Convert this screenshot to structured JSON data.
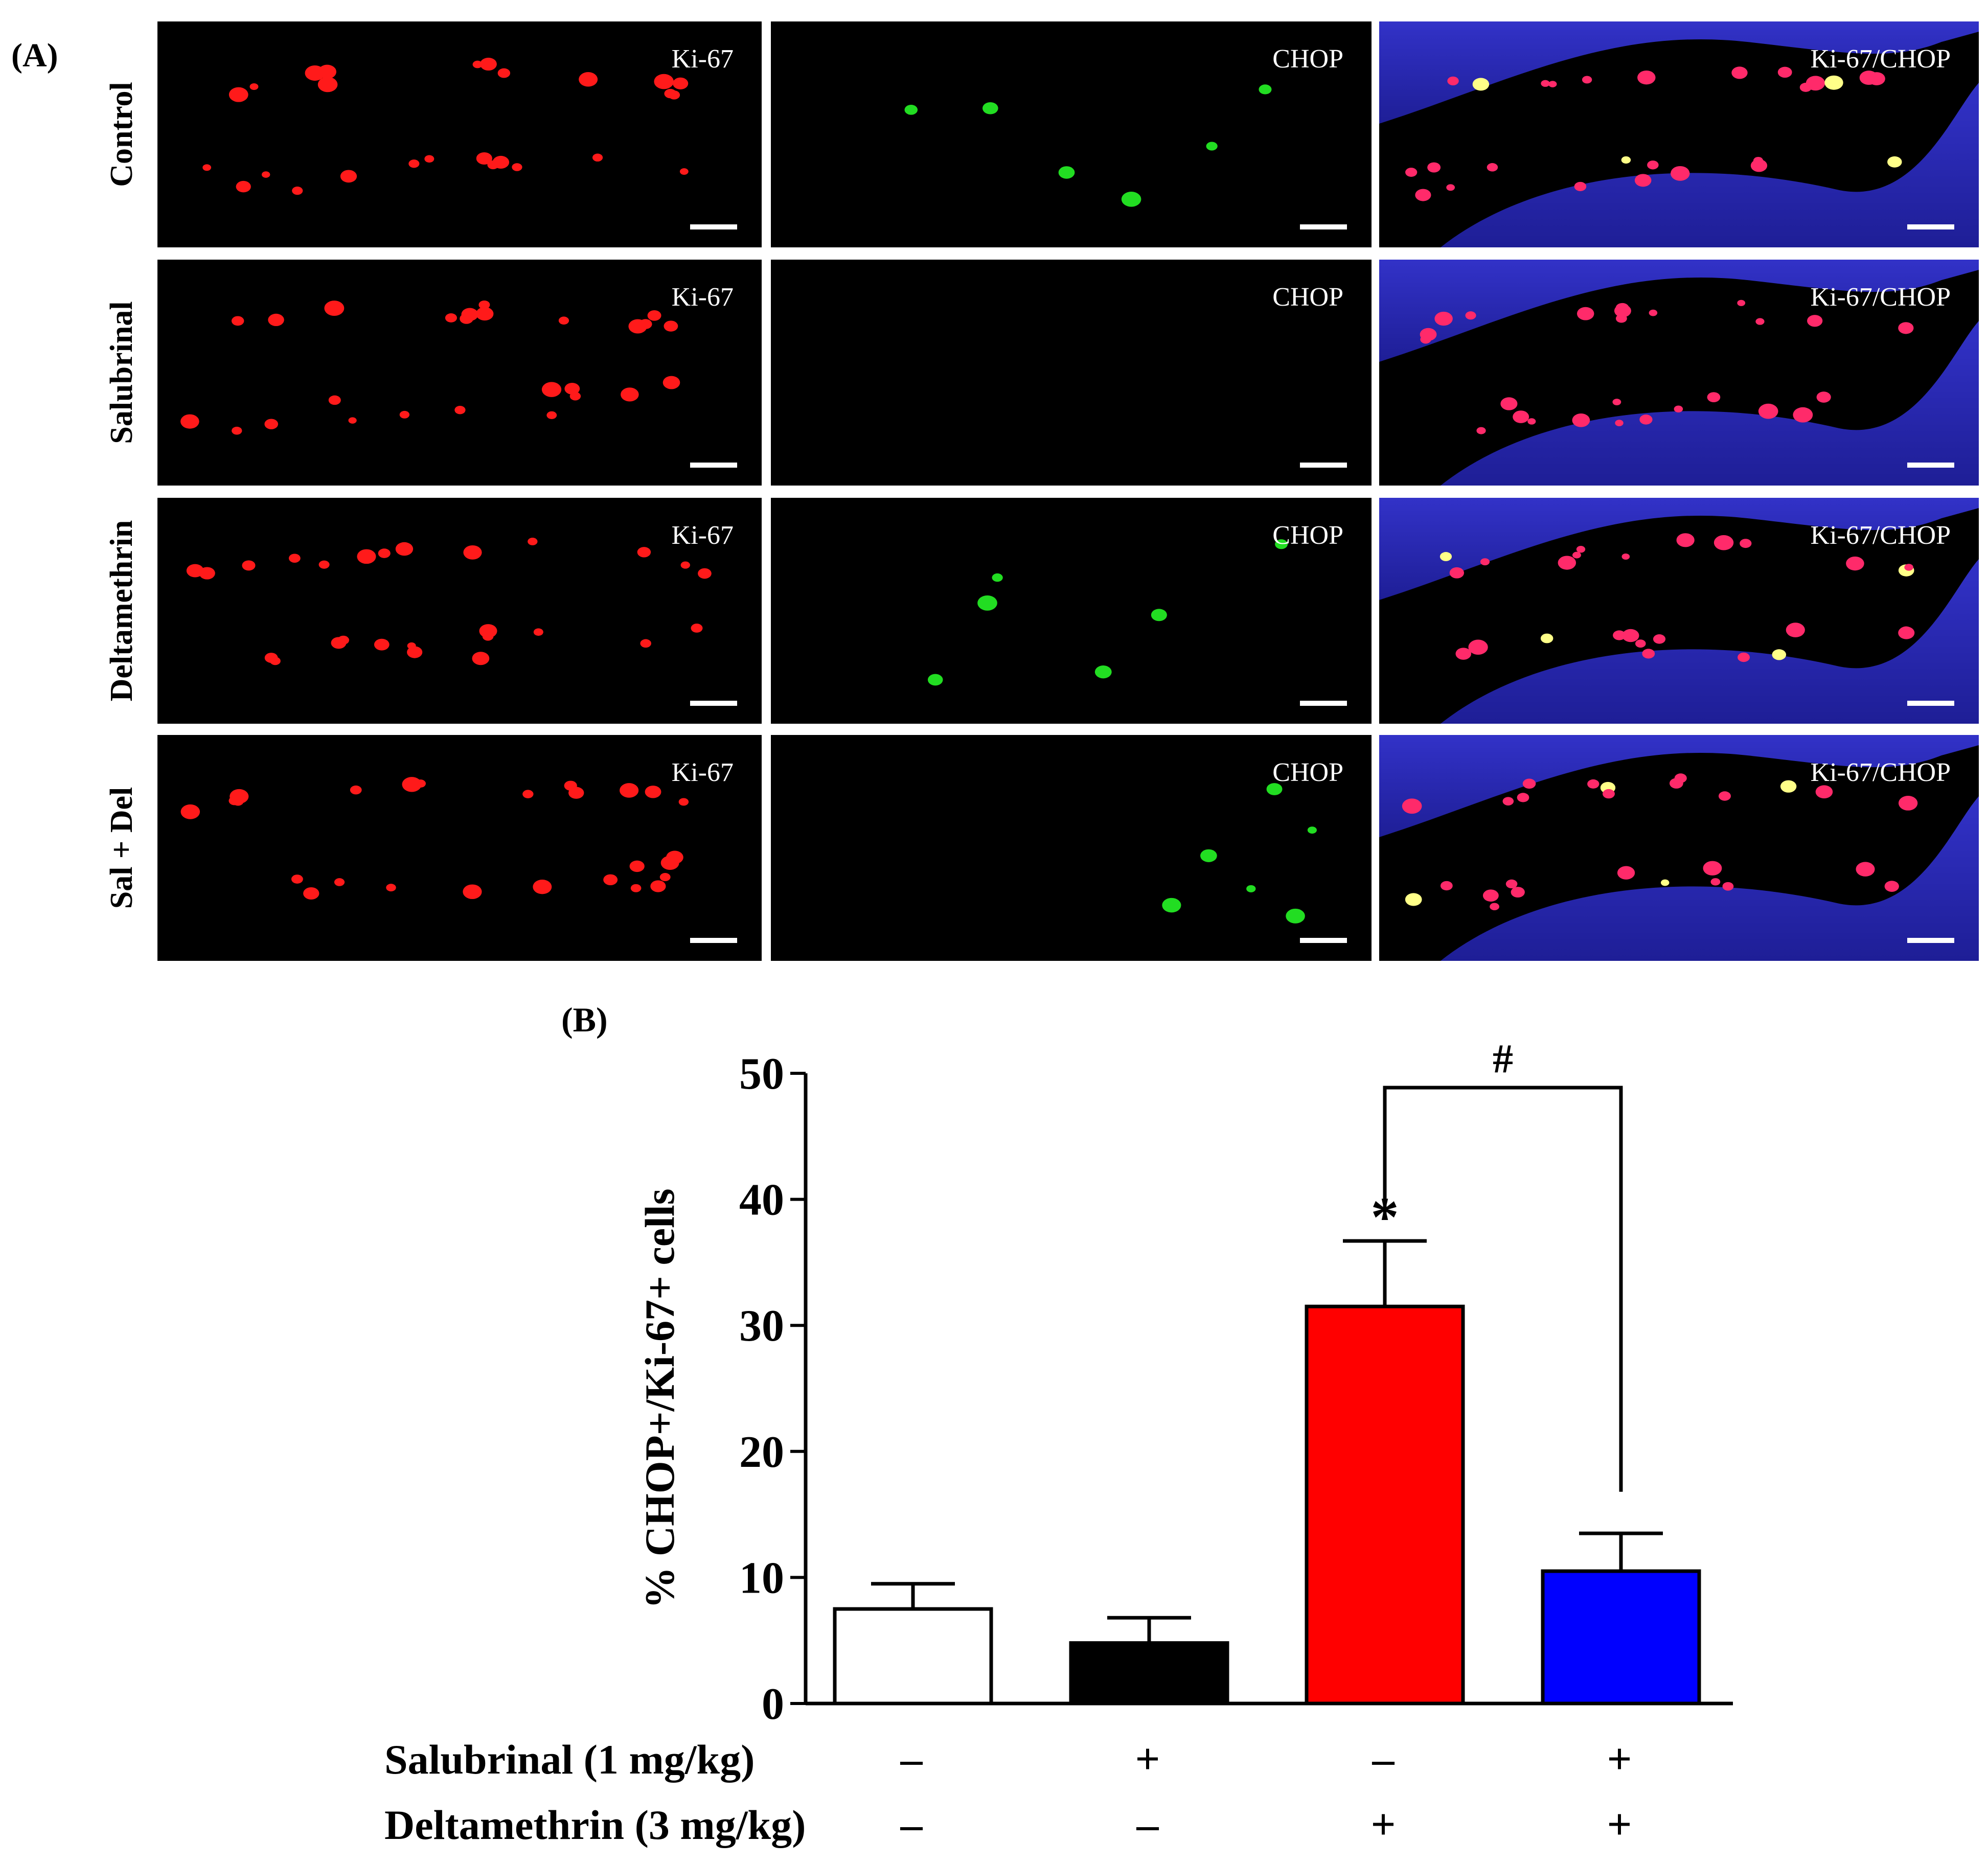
{
  "panel_a": {
    "label": "(A)",
    "rows": [
      {
        "group": "Control",
        "channels": [
          "Ki-67",
          "CHOP",
          "Ki-67/CHOP"
        ]
      },
      {
        "group": "Salubrinal",
        "channels": [
          "Ki-67",
          "CHOP",
          "Ki-67/CHOP"
        ]
      },
      {
        "group": "Deltamethrin",
        "channels": [
          "Ki-67",
          "CHOP",
          "Ki-67/CHOP"
        ]
      },
      {
        "group": "Sal + Del",
        "channels": [
          "Ki-67",
          "CHOP",
          "Ki-67/CHOP"
        ]
      }
    ],
    "colors": {
      "ki67": "#ff1a1a",
      "chop": "#22dd22",
      "dapi": "#2a2ab8",
      "merge": "#ff2a6a",
      "coloc": "#ffff88",
      "background": "#000000"
    }
  },
  "panel_b": {
    "label": "(B)",
    "treatment_rows": [
      {
        "label": "Salubrinal (1 mg/kg)",
        "signs": [
          "–",
          "+",
          "–",
          "+"
        ]
      },
      {
        "label": "Deltamethrin (3 mg/kg)",
        "signs": [
          "–",
          "–",
          "+",
          "+"
        ]
      }
    ]
  },
  "chart_data": {
    "type": "bar",
    "categories": [
      "Control",
      "Salubrinal",
      "Deltamethrin",
      "Sal + Del"
    ],
    "values": [
      7.5,
      4.8,
      31.5,
      10.5
    ],
    "errors": [
      2.0,
      2.0,
      5.2,
      3.0
    ],
    "bar_colors": [
      "#ffffff",
      "#000000",
      "#ff0000",
      "#0000ff"
    ],
    "ylabel": "% CHOP+/Ki-67+ cells",
    "ylim": [
      0,
      50
    ],
    "yticks": [
      0,
      10,
      20,
      30,
      40,
      50
    ],
    "annotations": [
      {
        "text": "*",
        "category": "Deltamethrin"
      },
      {
        "text": "#",
        "from": "Deltamethrin",
        "to": "Sal + Del"
      }
    ]
  }
}
